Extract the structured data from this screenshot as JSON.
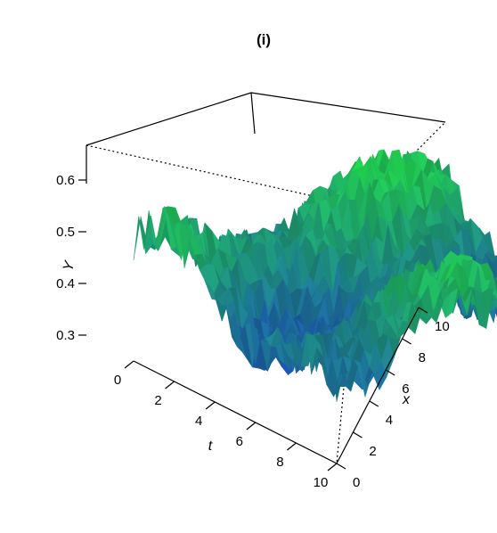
{
  "chart_data": {
    "type": "surface3d",
    "title": "(i)",
    "axes": {
      "t": {
        "label": "t",
        "range": [
          0,
          10
        ],
        "ticks": [
          "0",
          "2",
          "4",
          "6",
          "8",
          "10"
        ]
      },
      "x": {
        "label": "x",
        "range": [
          0,
          10
        ],
        "ticks": [
          "0",
          "2",
          "4",
          "6",
          "8",
          "10"
        ]
      },
      "y": {
        "label": "Y",
        "range": [
          0.25,
          0.62
        ],
        "ticks": [
          "0.3",
          "0.4",
          "0.5",
          "0.6"
        ]
      }
    },
    "surface": {
      "description_values": "rough random field Y(t,x) on a 10x10 grid",
      "value_range": [
        0.27,
        0.62
      ],
      "colormap": {
        "low": "#1a2fd6",
        "high": "#22e83a"
      }
    },
    "box": true,
    "grid": false
  }
}
